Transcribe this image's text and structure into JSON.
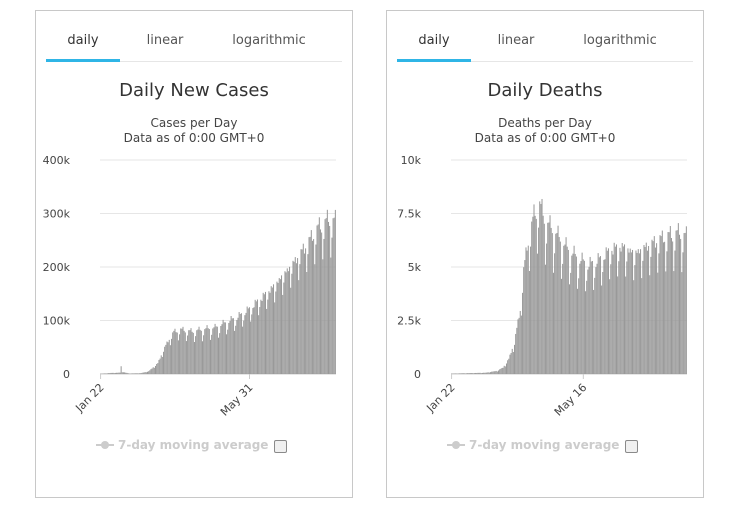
{
  "panels": [
    {
      "tabs": [
        {
          "label": "daily",
          "active": true
        },
        {
          "label": "linear",
          "active": false
        },
        {
          "label": "logarithmic",
          "active": false
        }
      ],
      "legend": {
        "label": "7-day moving average",
        "checked": false
      }
    },
    {
      "tabs": [
        {
          "label": "daily",
          "active": true
        },
        {
          "label": "linear",
          "active": false
        },
        {
          "label": "logarithmic",
          "active": false
        }
      ],
      "legend": {
        "label": "7-day moving average",
        "checked": false
      }
    }
  ],
  "colors": {
    "bar": "#999999",
    "tab_active": "#2fb5e6",
    "legend_inactive": "#cccccc"
  },
  "chart_data": [
    {
      "type": "bar",
      "title": "Daily New Cases",
      "subtitle": [
        "Cases per Day",
        "Data as of 0:00 GMT+0"
      ],
      "xlabel": "",
      "ylabel": "",
      "ylim": [
        0,
        400000
      ],
      "yticks": [
        {
          "value": 0,
          "label": "0"
        },
        {
          "value": 100000,
          "label": "100k"
        },
        {
          "value": 200000,
          "label": "200k"
        },
        {
          "value": 300000,
          "label": "300k"
        },
        {
          "value": 400000,
          "label": "400k"
        }
      ],
      "xticks": [
        {
          "index": 0,
          "label": "Jan 22"
        },
        {
          "index": 130,
          "label": "May 31"
        }
      ],
      "grid": true,
      "legend": "bottom",
      "days": 206,
      "start_date": "Jan 22",
      "series": [
        {
          "keyframes": [
            [
              0,
              500
            ],
            [
              10,
              2000
            ],
            [
              17,
              2500
            ],
            [
              18,
              14000
            ],
            [
              19,
              4000
            ],
            [
              25,
              1000
            ],
            [
              35,
              1500
            ],
            [
              42,
              5000
            ],
            [
              50,
              20000
            ],
            [
              55,
              45000
            ],
            [
              60,
              65000
            ],
            [
              64,
              78000
            ],
            [
              70,
              82000
            ],
            [
              80,
              78000
            ],
            [
              90,
              82000
            ],
            [
              100,
              85000
            ],
            [
              110,
              95000
            ],
            [
              120,
              105000
            ],
            [
              130,
              120000
            ],
            [
              140,
              140000
            ],
            [
              150,
              160000
            ],
            [
              160,
              185000
            ],
            [
              170,
              210000
            ],
            [
              180,
              240000
            ],
            [
              190,
              270000
            ],
            [
              200,
              285000
            ],
            [
              205,
              280000
            ]
          ],
          "weekly_dip": 0.78
        }
      ]
    },
    {
      "type": "bar",
      "title": "Daily Deaths",
      "subtitle": [
        "Deaths per Day",
        "Data as of 0:00 GMT+0"
      ],
      "xlabel": "",
      "ylabel": "",
      "ylim": [
        0,
        10000
      ],
      "yticks": [
        {
          "value": 0,
          "label": "0"
        },
        {
          "value": 2500,
          "label": "2.5k"
        },
        {
          "value": 5000,
          "label": "5k"
        },
        {
          "value": 7500,
          "label": "7.5k"
        },
        {
          "value": 10000,
          "label": "10k"
        }
      ],
      "xticks": [
        {
          "index": 0,
          "label": "Jan 22"
        },
        {
          "index": 115,
          "label": "May 16"
        }
      ],
      "grid": true,
      "legend": "bottom",
      "days": 206,
      "start_date": "Jan 22",
      "series": [
        {
          "keyframes": [
            [
              0,
              20
            ],
            [
              30,
              60
            ],
            [
              40,
              150
            ],
            [
              45,
              300
            ],
            [
              50,
              700
            ],
            [
              55,
              1500
            ],
            [
              60,
              3000
            ],
            [
              63,
              4800
            ],
            [
              67,
              6200
            ],
            [
              72,
              7300
            ],
            [
              77,
              7800
            ],
            [
              82,
              7000
            ],
            [
              90,
              6500
            ],
            [
              100,
              5800
            ],
            [
              110,
              5300
            ],
            [
              120,
              5000
            ],
            [
              130,
              5300
            ],
            [
              140,
              5800
            ],
            [
              150,
              5900
            ],
            [
              160,
              5600
            ],
            [
              170,
              5900
            ],
            [
              180,
              6200
            ],
            [
              190,
              6400
            ],
            [
              200,
              6500
            ],
            [
              205,
              6300
            ]
          ],
          "weekly_dip": 0.75
        }
      ]
    }
  ]
}
